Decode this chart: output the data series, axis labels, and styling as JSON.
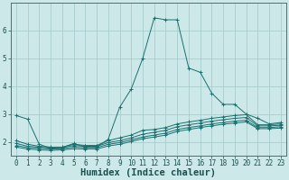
{
  "bg_color": "#cce8e8",
  "grid_color": "#aacccc",
  "line_color": "#1a7070",
  "xlabel": "Humidex (Indice chaleur)",
  "xlabel_fontsize": 7.5,
  "tick_fontsize": 5.5,
  "xlim": [
    -0.5,
    23.5
  ],
  "ylim": [
    1.5,
    7.0
  ],
  "yticks": [
    2,
    3,
    4,
    5,
    6
  ],
  "xticks": [
    0,
    1,
    2,
    3,
    4,
    5,
    6,
    7,
    8,
    9,
    10,
    11,
    12,
    13,
    14,
    15,
    16,
    17,
    18,
    19,
    20,
    21,
    22,
    23
  ],
  "series": [
    {
      "x": [
        0,
        1,
        2,
        3,
        4,
        5,
        6,
        7,
        8,
        9,
        10,
        11,
        12,
        13,
        14,
        15,
        16,
        17,
        18,
        19,
        20,
        21,
        22,
        23
      ],
      "y": [
        2.95,
        2.82,
        1.92,
        1.78,
        1.8,
        1.95,
        1.82,
        1.82,
        2.1,
        3.25,
        3.9,
        5.0,
        6.45,
        6.38,
        6.38,
        4.65,
        4.5,
        3.75,
        3.35,
        3.35,
        3.0,
        2.85,
        2.65,
        2.7
      ]
    },
    {
      "x": [
        0,
        1,
        2,
        3,
        4,
        5,
        6,
        7,
        8,
        9,
        10,
        11,
        12,
        13,
        14,
        15,
        16,
        17,
        18,
        19,
        20,
        21,
        22,
        23
      ],
      "y": [
        2.05,
        1.92,
        1.85,
        1.82,
        1.82,
        1.92,
        1.88,
        1.88,
        2.05,
        2.15,
        2.25,
        2.42,
        2.45,
        2.52,
        2.65,
        2.72,
        2.78,
        2.85,
        2.9,
        2.95,
        2.98,
        2.62,
        2.62,
        2.65
      ]
    },
    {
      "x": [
        0,
        1,
        2,
        3,
        4,
        5,
        6,
        7,
        8,
        9,
        10,
        11,
        12,
        13,
        14,
        15,
        16,
        17,
        18,
        19,
        20,
        21,
        22,
        23
      ],
      "y": [
        1.95,
        1.85,
        1.82,
        1.78,
        1.8,
        1.88,
        1.85,
        1.85,
        1.98,
        2.05,
        2.15,
        2.28,
        2.35,
        2.42,
        2.55,
        2.62,
        2.68,
        2.75,
        2.8,
        2.85,
        2.88,
        2.58,
        2.58,
        2.6
      ]
    },
    {
      "x": [
        0,
        1,
        2,
        3,
        4,
        5,
        6,
        7,
        8,
        9,
        10,
        11,
        12,
        13,
        14,
        15,
        16,
        17,
        18,
        19,
        20,
        21,
        22,
        23
      ],
      "y": [
        1.88,
        1.8,
        1.78,
        1.75,
        1.76,
        1.82,
        1.8,
        1.8,
        1.92,
        1.98,
        2.08,
        2.18,
        2.25,
        2.32,
        2.45,
        2.52,
        2.58,
        2.65,
        2.7,
        2.75,
        2.78,
        2.52,
        2.52,
        2.55
      ]
    },
    {
      "x": [
        0,
        1,
        2,
        3,
        4,
        5,
        6,
        7,
        8,
        9,
        10,
        11,
        12,
        13,
        14,
        15,
        16,
        17,
        18,
        19,
        20,
        21,
        22,
        23
      ],
      "y": [
        1.82,
        1.75,
        1.72,
        1.7,
        1.72,
        1.76,
        1.75,
        1.75,
        1.86,
        1.92,
        2.02,
        2.12,
        2.18,
        2.25,
        2.38,
        2.45,
        2.52,
        2.58,
        2.64,
        2.68,
        2.72,
        2.48,
        2.48,
        2.5
      ]
    }
  ]
}
